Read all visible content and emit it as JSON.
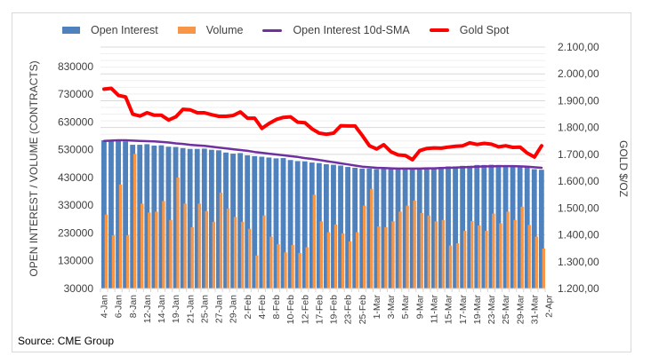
{
  "chart_data": {
    "type": "bar",
    "title": "",
    "ylabel": "OPEN INTEREST / VOLUME (CONTRACTS)",
    "y2label": "GOLD $/OZ",
    "ylim": [
      30000,
      900000
    ],
    "y2lim": [
      1200,
      2100
    ],
    "yticks": [
      "30000",
      "130000",
      "230000",
      "330000",
      "430000",
      "530000",
      "630000",
      "730000",
      "830000"
    ],
    "y2ticks": [
      "1.200,00",
      "1.300,00",
      "1.400,00",
      "1.500,00",
      "1.600,00",
      "1.700,00",
      "1.800,00",
      "1.900,00",
      "2.000,00",
      "2.100,00"
    ],
    "xtick_labels": [
      "4-Jan",
      "6-Jan",
      "8-Jan",
      "12-Jan",
      "14-Jan",
      "19-Jan",
      "21-Jan",
      "25-Jan",
      "27-Jan",
      "29-Jan",
      "2-Feb",
      "4-Feb",
      "8-Feb",
      "10-Feb",
      "12-Feb",
      "17-Feb",
      "19-Feb",
      "23-Feb",
      "25-Feb",
      "1-Mar",
      "3-Mar",
      "5-Mar",
      "9-Mar",
      "11-Mar",
      "15-Mar",
      "17-Mar",
      "19-Mar",
      "23-Mar",
      "25-Mar",
      "29-Mar",
      "31-Mar",
      "2-Apr"
    ],
    "grid": true,
    "legend_position": "top",
    "series": [
      {
        "name": "Open Interest",
        "type": "bar",
        "axis": "left",
        "color": "#4f81bd",
        "values": [
          564000,
          562000,
          562000,
          560000,
          548000,
          548000,
          550000,
          545000,
          546000,
          541000,
          540000,
          536000,
          533000,
          533000,
          534000,
          530000,
          528000,
          520000,
          516000,
          518000,
          510000,
          507000,
          505000,
          502000,
          499000,
          500000,
          493000,
          489000,
          488000,
          484000,
          482000,
          478000,
          476000,
          473000,
          468000,
          465000,
          462000,
          462000,
          460000,
          461000,
          460000,
          460000,
          459000,
          461000,
          460000,
          462000,
          465000,
          468000,
          470000,
          470000,
          472000,
          472000,
          475000,
          475000,
          476000,
          475000,
          474000,
          473000,
          472000,
          470000,
          460000,
          458000
        ]
      },
      {
        "name": "Volume",
        "type": "bar",
        "axis": "left",
        "color": "#f79646",
        "values": [
          296600,
          222000,
          405000,
          222000,
          515000,
          336000,
          304000,
          307000,
          345000,
          277000,
          430000,
          336000,
          251000,
          336000,
          309000,
          270000,
          376000,
          318000,
          288000,
          270000,
          245000,
          149000,
          293000,
          217000,
          190000,
          160000,
          187000,
          158000,
          179000,
          368000,
          272000,
          233000,
          261000,
          229000,
          200000,
          233000,
          329000,
          389000,
          254000,
          251000,
          272000,
          307000,
          329000,
          347000,
          302000,
          293000,
          272000,
          277000,
          185000,
          193000,
          238000,
          273000,
          257000,
          238000,
          300000,
          265000,
          307000,
          277000,
          325000,
          259000,
          217000,
          174000
        ]
      },
      {
        "name": "Open Interest 10d-SMA",
        "type": "line",
        "axis": "left",
        "color": "#7030a0",
        "values": [
          562000,
          563000,
          564000,
          564000,
          563000,
          562000,
          561000,
          560000,
          558000,
          556000,
          553000,
          551000,
          548000,
          546000,
          544000,
          541000,
          538000,
          535000,
          532000,
          529000,
          526000,
          522000,
          519000,
          516000,
          513000,
          510000,
          507000,
          504000,
          500000,
          497000,
          493000,
          489000,
          485000,
          481000,
          477000,
          473000,
          469000,
          467000,
          465000,
          464000,
          463000,
          462000,
          462000,
          462000,
          462000,
          463000,
          463000,
          464000,
          465000,
          466000,
          467000,
          468000,
          469000,
          470000,
          470000,
          471000,
          471000,
          471000,
          470000,
          469000,
          467000,
          465000
        ]
      },
      {
        "name": "Gold Spot",
        "type": "line",
        "axis": "right",
        "color": "#ff0000",
        "values": [
          1943,
          1946,
          1920,
          1914,
          1850,
          1843,
          1855,
          1846,
          1846,
          1828,
          1840,
          1868,
          1866,
          1855,
          1855,
          1848,
          1842,
          1842,
          1845,
          1858,
          1835,
          1835,
          1797,
          1815,
          1830,
          1838,
          1840,
          1820,
          1818,
          1795,
          1779,
          1775,
          1779,
          1807,
          1806,
          1806,
          1770,
          1732,
          1720,
          1736,
          1710,
          1698,
          1696,
          1680,
          1714,
          1722,
          1724,
          1723,
          1727,
          1730,
          1732,
          1743,
          1737,
          1741,
          1738,
          1728,
          1732,
          1726,
          1727,
          1705,
          1690,
          1732
        ]
      }
    ]
  },
  "legend": {
    "items": [
      "Open Interest",
      "Volume",
      "Open Interest 10d-SMA",
      "Gold Spot"
    ]
  },
  "source": "Source: CME Group"
}
